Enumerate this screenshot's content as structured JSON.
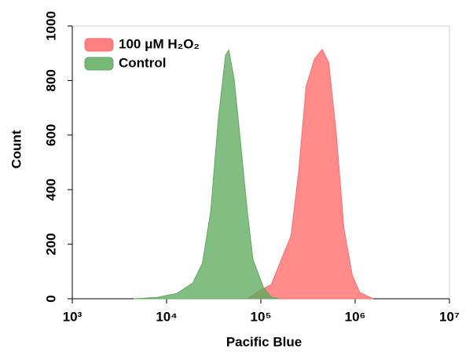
{
  "chart_data": {
    "type": "area",
    "xlabel": "Pacific Blue",
    "ylabel": "Count",
    "xscale": "log",
    "xlim": [
      1000,
      10000000
    ],
    "xticks": [
      {
        "value": 1000,
        "label": "10³"
      },
      {
        "value": 10000,
        "label": "10⁴"
      },
      {
        "value": 100000,
        "label": "10⁵"
      },
      {
        "value": 1000000,
        "label": "10⁶"
      },
      {
        "value": 10000000,
        "label": "10⁷"
      }
    ],
    "ylim": [
      0,
      1000
    ],
    "yticks": [
      0,
      200,
      400,
      600,
      800,
      1000
    ],
    "legend": "upper-left",
    "series": [
      {
        "name": "100 μM H₂O₂",
        "color": "#ff6a6a",
        "x": [
          72000,
          96000,
          129000,
          165000,
          209000,
          251000,
          302000,
          371000,
          447000,
          525000,
          631000,
          759000,
          933000,
          1120000,
          1550000
        ],
        "values": [
          0,
          29,
          52,
          144,
          231,
          461,
          778,
          879,
          914,
          865,
          605,
          259,
          86,
          23,
          0
        ]
      },
      {
        "name": "Control",
        "color": "#5faa5f",
        "x": [
          4467,
          7943,
          12900,
          19000,
          24000,
          29300,
          35500,
          42200,
          45700,
          52000,
          60800,
          72000,
          82500,
          106000,
          129000,
          155000
        ],
        "values": [
          0,
          5,
          20,
          58,
          130,
          317,
          663,
          893,
          911,
          807,
          576,
          317,
          144,
          43,
          6,
          0
        ]
      }
    ]
  }
}
